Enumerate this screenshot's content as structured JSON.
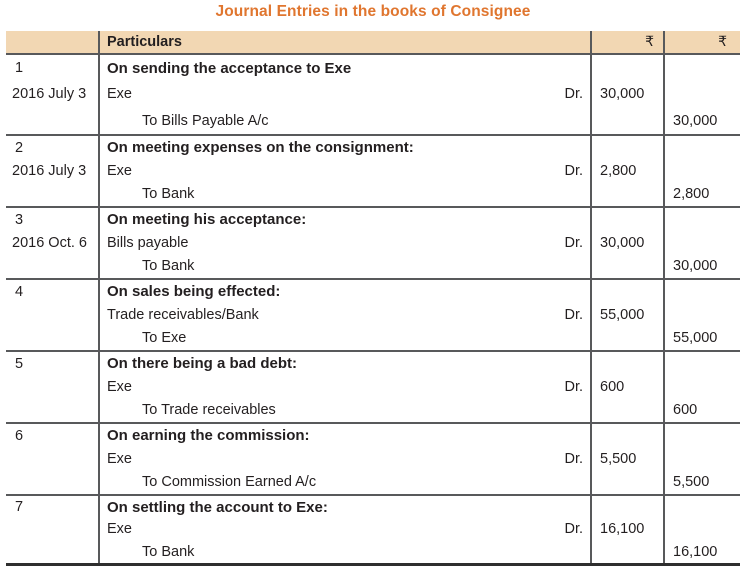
{
  "title": "Journal Entries in the books of Consignee",
  "colors": {
    "accent_orange": "#e0762f",
    "header_beige": "#f2d7b3",
    "border_gray": "#58595b",
    "bottom_border": "#2e2e2e",
    "text": "#231f20"
  },
  "table": {
    "header": {
      "blank": "",
      "particulars": "Particulars",
      "debit_symbol": "₹",
      "credit_symbol": "₹"
    },
    "entries": [
      {
        "no": "1",
        "date": "2016 July 3",
        "narration": "On sending the acceptance to Exe",
        "debit_account": "Exe",
        "dr_label": "Dr.",
        "debit_amount": "30,000",
        "credit_account": "To Bills Payable A/c",
        "credit_amount": "30,000"
      },
      {
        "no": "2",
        "date": "2016 July 3",
        "narration": "On meeting expenses on the consignment:",
        "debit_account": "Exe",
        "dr_label": "Dr.",
        "debit_amount": "2,800",
        "credit_account": "To Bank",
        "credit_amount": "2,800"
      },
      {
        "no": "3",
        "date": "2016 Oct. 6",
        "narration": "On meeting his acceptance:",
        "debit_account": "Bills payable",
        "dr_label": "Dr.",
        "debit_amount": "30,000",
        "credit_account": "To Bank",
        "credit_amount": "30,000"
      },
      {
        "no": "4",
        "date": "",
        "narration": "On sales being effected:",
        "debit_account": "Trade receivables/Bank",
        "dr_label": "Dr.",
        "debit_amount": "55,000",
        "credit_account": "To Exe",
        "credit_amount": "55,000"
      },
      {
        "no": "5",
        "date": "",
        "narration": "On there being a bad debt:",
        "debit_account": "Exe",
        "dr_label": "Dr.",
        "debit_amount": "600",
        "credit_account": "To Trade receivables",
        "credit_amount": "600"
      },
      {
        "no": "6",
        "date": "",
        "narration": "On earning the commission:",
        "debit_account": "Exe",
        "dr_label": "Dr.",
        "debit_amount": "5,500",
        "credit_account": "To Commission Earned A/c",
        "credit_amount": "5,500"
      },
      {
        "no": "7",
        "date": "",
        "narration": "On settling the account to Exe:",
        "debit_account": "Exe",
        "dr_label": "Dr.",
        "debit_amount": "16,100",
        "credit_account": "To Bank",
        "credit_amount": "16,100"
      }
    ]
  }
}
